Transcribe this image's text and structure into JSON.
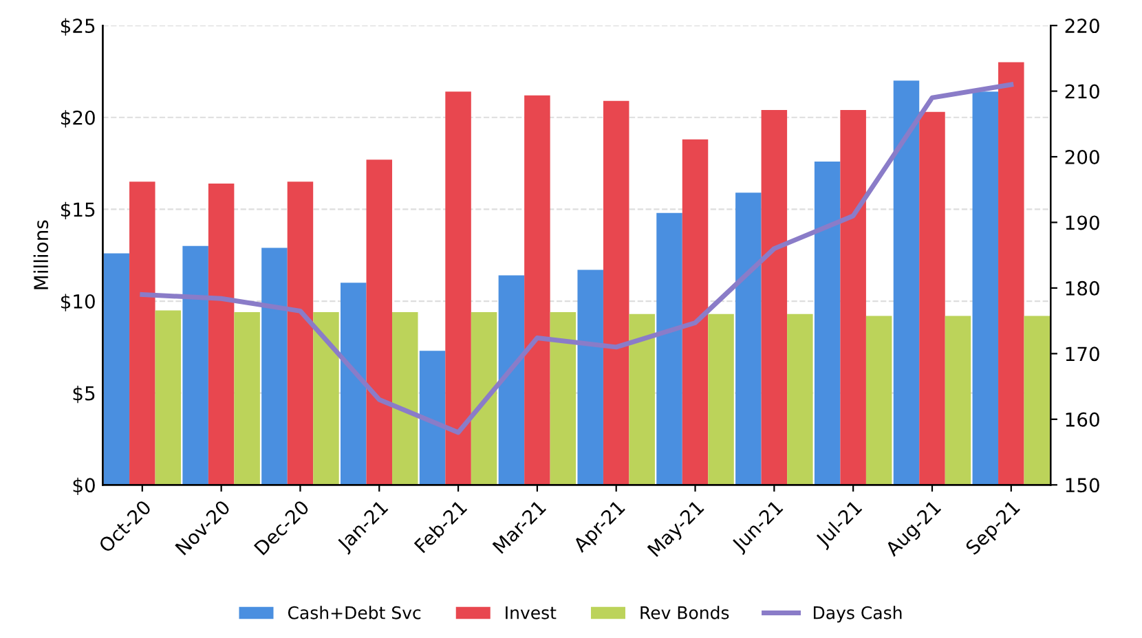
{
  "chart_data": {
    "type": "bar",
    "ylabel": "Millions",
    "categories": [
      "Oct-20",
      "Nov-20",
      "Dec-20",
      "Jan-21",
      "Feb-21",
      "Mar-21",
      "Apr-21",
      "May-21",
      "Jun-21",
      "Jul-21",
      "Aug-21",
      "Sep-21"
    ],
    "series": [
      {
        "name": "Cash+Debt Svc",
        "color": "#4a8fe0",
        "values": [
          12.6,
          13.0,
          12.9,
          11.0,
          7.3,
          11.4,
          11.7,
          14.8,
          15.9,
          17.6,
          22.0,
          21.4
        ]
      },
      {
        "name": "Invest",
        "color": "#e8474f",
        "values": [
          16.5,
          16.4,
          16.5,
          17.7,
          21.4,
          21.2,
          20.9,
          18.8,
          20.4,
          20.4,
          20.3,
          23.0
        ]
      },
      {
        "name": "Rev Bonds",
        "color": "#bcd35a",
        "values": [
          9.5,
          9.4,
          9.4,
          9.4,
          9.4,
          9.4,
          9.3,
          9.3,
          9.3,
          9.2,
          9.2,
          9.2
        ]
      },
      {
        "name": "Days Cash",
        "color": "#8a7cc8",
        "type": "line",
        "axis": "y2",
        "values": [
          179,
          178.4,
          176.5,
          163,
          158,
          172.4,
          171,
          174.7,
          186,
          191,
          209,
          211
        ]
      }
    ],
    "ylim": [
      0,
      25
    ],
    "yticks": [
      {
        "value": 0,
        "label": "$0"
      },
      {
        "value": 5,
        "label": "$5"
      },
      {
        "value": 10,
        "label": "$10"
      },
      {
        "value": 15,
        "label": "$15"
      },
      {
        "value": 20,
        "label": "$20"
      },
      {
        "value": 25,
        "label": "$25"
      }
    ],
    "y2lim": [
      150,
      220
    ],
    "y2ticks": [
      150,
      160,
      170,
      180,
      190,
      200,
      210,
      220
    ],
    "grid": "y",
    "legend": "bottom",
    "marker": "none",
    "line_style": "solid"
  }
}
